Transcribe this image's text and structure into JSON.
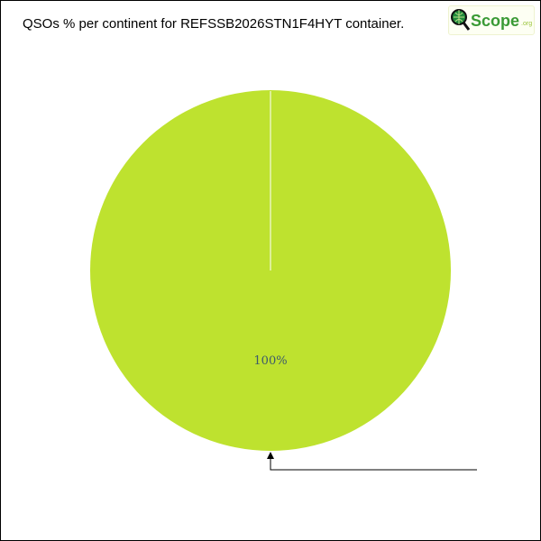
{
  "chart_data": {
    "type": "pie",
    "title": "QSOs % per continent for REFSSB2026STN1F4HYT container.",
    "slices": [
      {
        "value": 100,
        "label": "100%",
        "color": "#bee22f"
      }
    ],
    "label_color": "#3d5a6b"
  },
  "logo": {
    "text": "QScope",
    "suffix": ".org"
  }
}
